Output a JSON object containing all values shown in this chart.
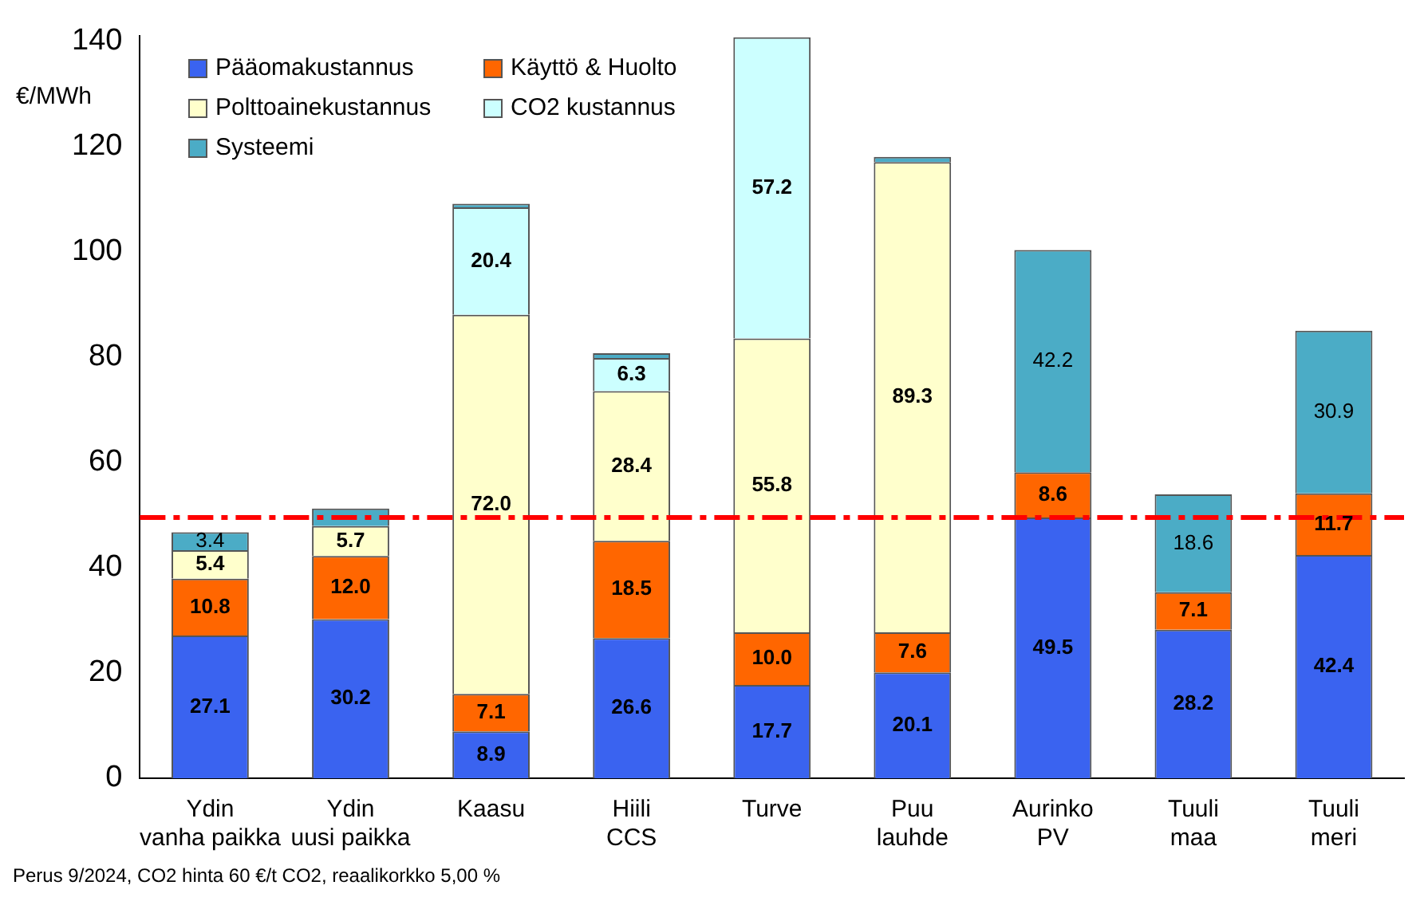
{
  "chart_data": {
    "type": "bar",
    "stacked": true,
    "ylabel": "€/MWh",
    "categories": [
      "Ydin\nvanha paikka",
      "Ydin\nuusi paikka",
      "Kaasu",
      "Hiili\nCCS",
      "Turve",
      "Puu\nlauhde",
      "Aurinko\nPV",
      "Tuuli\nmaa",
      "Tuuli\nmeri"
    ],
    "series": [
      {
        "name": "Pääomakustannus",
        "color": "#3a63f0",
        "values": [
          27.1,
          30.2,
          8.9,
          26.6,
          17.7,
          20.1,
          49.5,
          28.2,
          42.4
        ],
        "value_labels": [
          "27.1",
          "30.2",
          "8.9",
          "26.6",
          "17.7",
          "20.1",
          "49.5",
          "28.2",
          "42.4"
        ]
      },
      {
        "name": "Käyttö & Huolto",
        "color": "#ff6600",
        "values": [
          10.8,
          12.0,
          7.1,
          18.5,
          10.0,
          7.6,
          8.6,
          7.1,
          11.7
        ],
        "value_labels": [
          "10.8",
          "12.0",
          "7.1",
          "18.5",
          "10.0",
          "7.6",
          "8.6",
          "7.1",
          "11.7"
        ]
      },
      {
        "name": "Polttoainekustannus",
        "color": "#ffffcc",
        "values": [
          5.4,
          5.7,
          72.0,
          28.4,
          55.8,
          89.3,
          null,
          null,
          null
        ],
        "value_labels": [
          "5.4",
          "5.7",
          "72.0",
          "28.4",
          "55.8",
          "89.3",
          null,
          null,
          null
        ]
      },
      {
        "name": "CO2 kustannus",
        "color": "#ccffff",
        "values": [
          null,
          null,
          20.4,
          6.3,
          57.2,
          null,
          null,
          null,
          null
        ],
        "value_labels": [
          null,
          null,
          "20.4",
          "6.3",
          "57.2",
          null,
          null,
          null,
          null
        ]
      },
      {
        "name": "Systeemi",
        "color": "#4bacc6",
        "values": [
          3.4,
          3.3,
          0.7,
          0.9,
          null,
          1.0,
          42.2,
          18.6,
          30.9
        ],
        "value_labels": [
          "3.4",
          null,
          null,
          null,
          null,
          null,
          "42.2",
          "18.6",
          "30.9"
        ]
      }
    ],
    "ylim": [
      0,
      141
    ],
    "yticks": [
      0,
      20,
      40,
      60,
      80,
      100,
      120,
      140
    ],
    "ref_lines": [
      {
        "axis": "y",
        "value": 49.5,
        "color": "#ff0000",
        "line_style": "dashed"
      }
    ],
    "legend": "top left",
    "annotations": [
      "Perus 9/2024, CO2 hinta 60 €/t CO2, reaalikorkko 5,00 %"
    ]
  }
}
